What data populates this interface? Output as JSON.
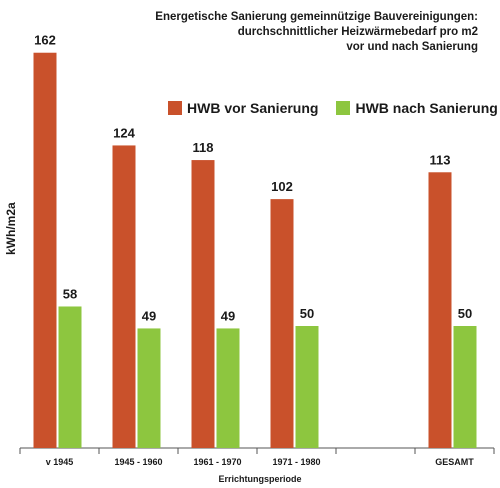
{
  "title_lines": [
    "Energetische Sanierung gemeinnützige Bauvereinigungen:",
    "durchschnittlicher Heizwärmebedarf pro m2",
    "vor und nach Sanierung"
  ],
  "colors": {
    "vor": "#c9512b",
    "nach": "#8dc63f"
  },
  "chart_data": {
    "type": "bar",
    "title": "Energetische Sanierung gemeinnützige Bauvereinigungen: durchschnittlicher Heizwärmebedarf pro m2 vor und nach Sanierung",
    "xlabel": "Errichtungsperiode",
    "ylabel": "kWh/m2a",
    "ylim": [
      0,
      175
    ],
    "grid": false,
    "legend_position": "top",
    "categories": [
      "v 1945",
      "1945 - 1960",
      "1961 - 1970",
      "1971 - 1980",
      "",
      "GESAMT"
    ],
    "series": [
      {
        "name": "HWB vor Sanierung",
        "values": [
          162,
          124,
          118,
          102,
          null,
          113
        ]
      },
      {
        "name": "HWB nach Sanierung",
        "values": [
          58,
          49,
          49,
          50,
          null,
          50
        ]
      }
    ]
  }
}
